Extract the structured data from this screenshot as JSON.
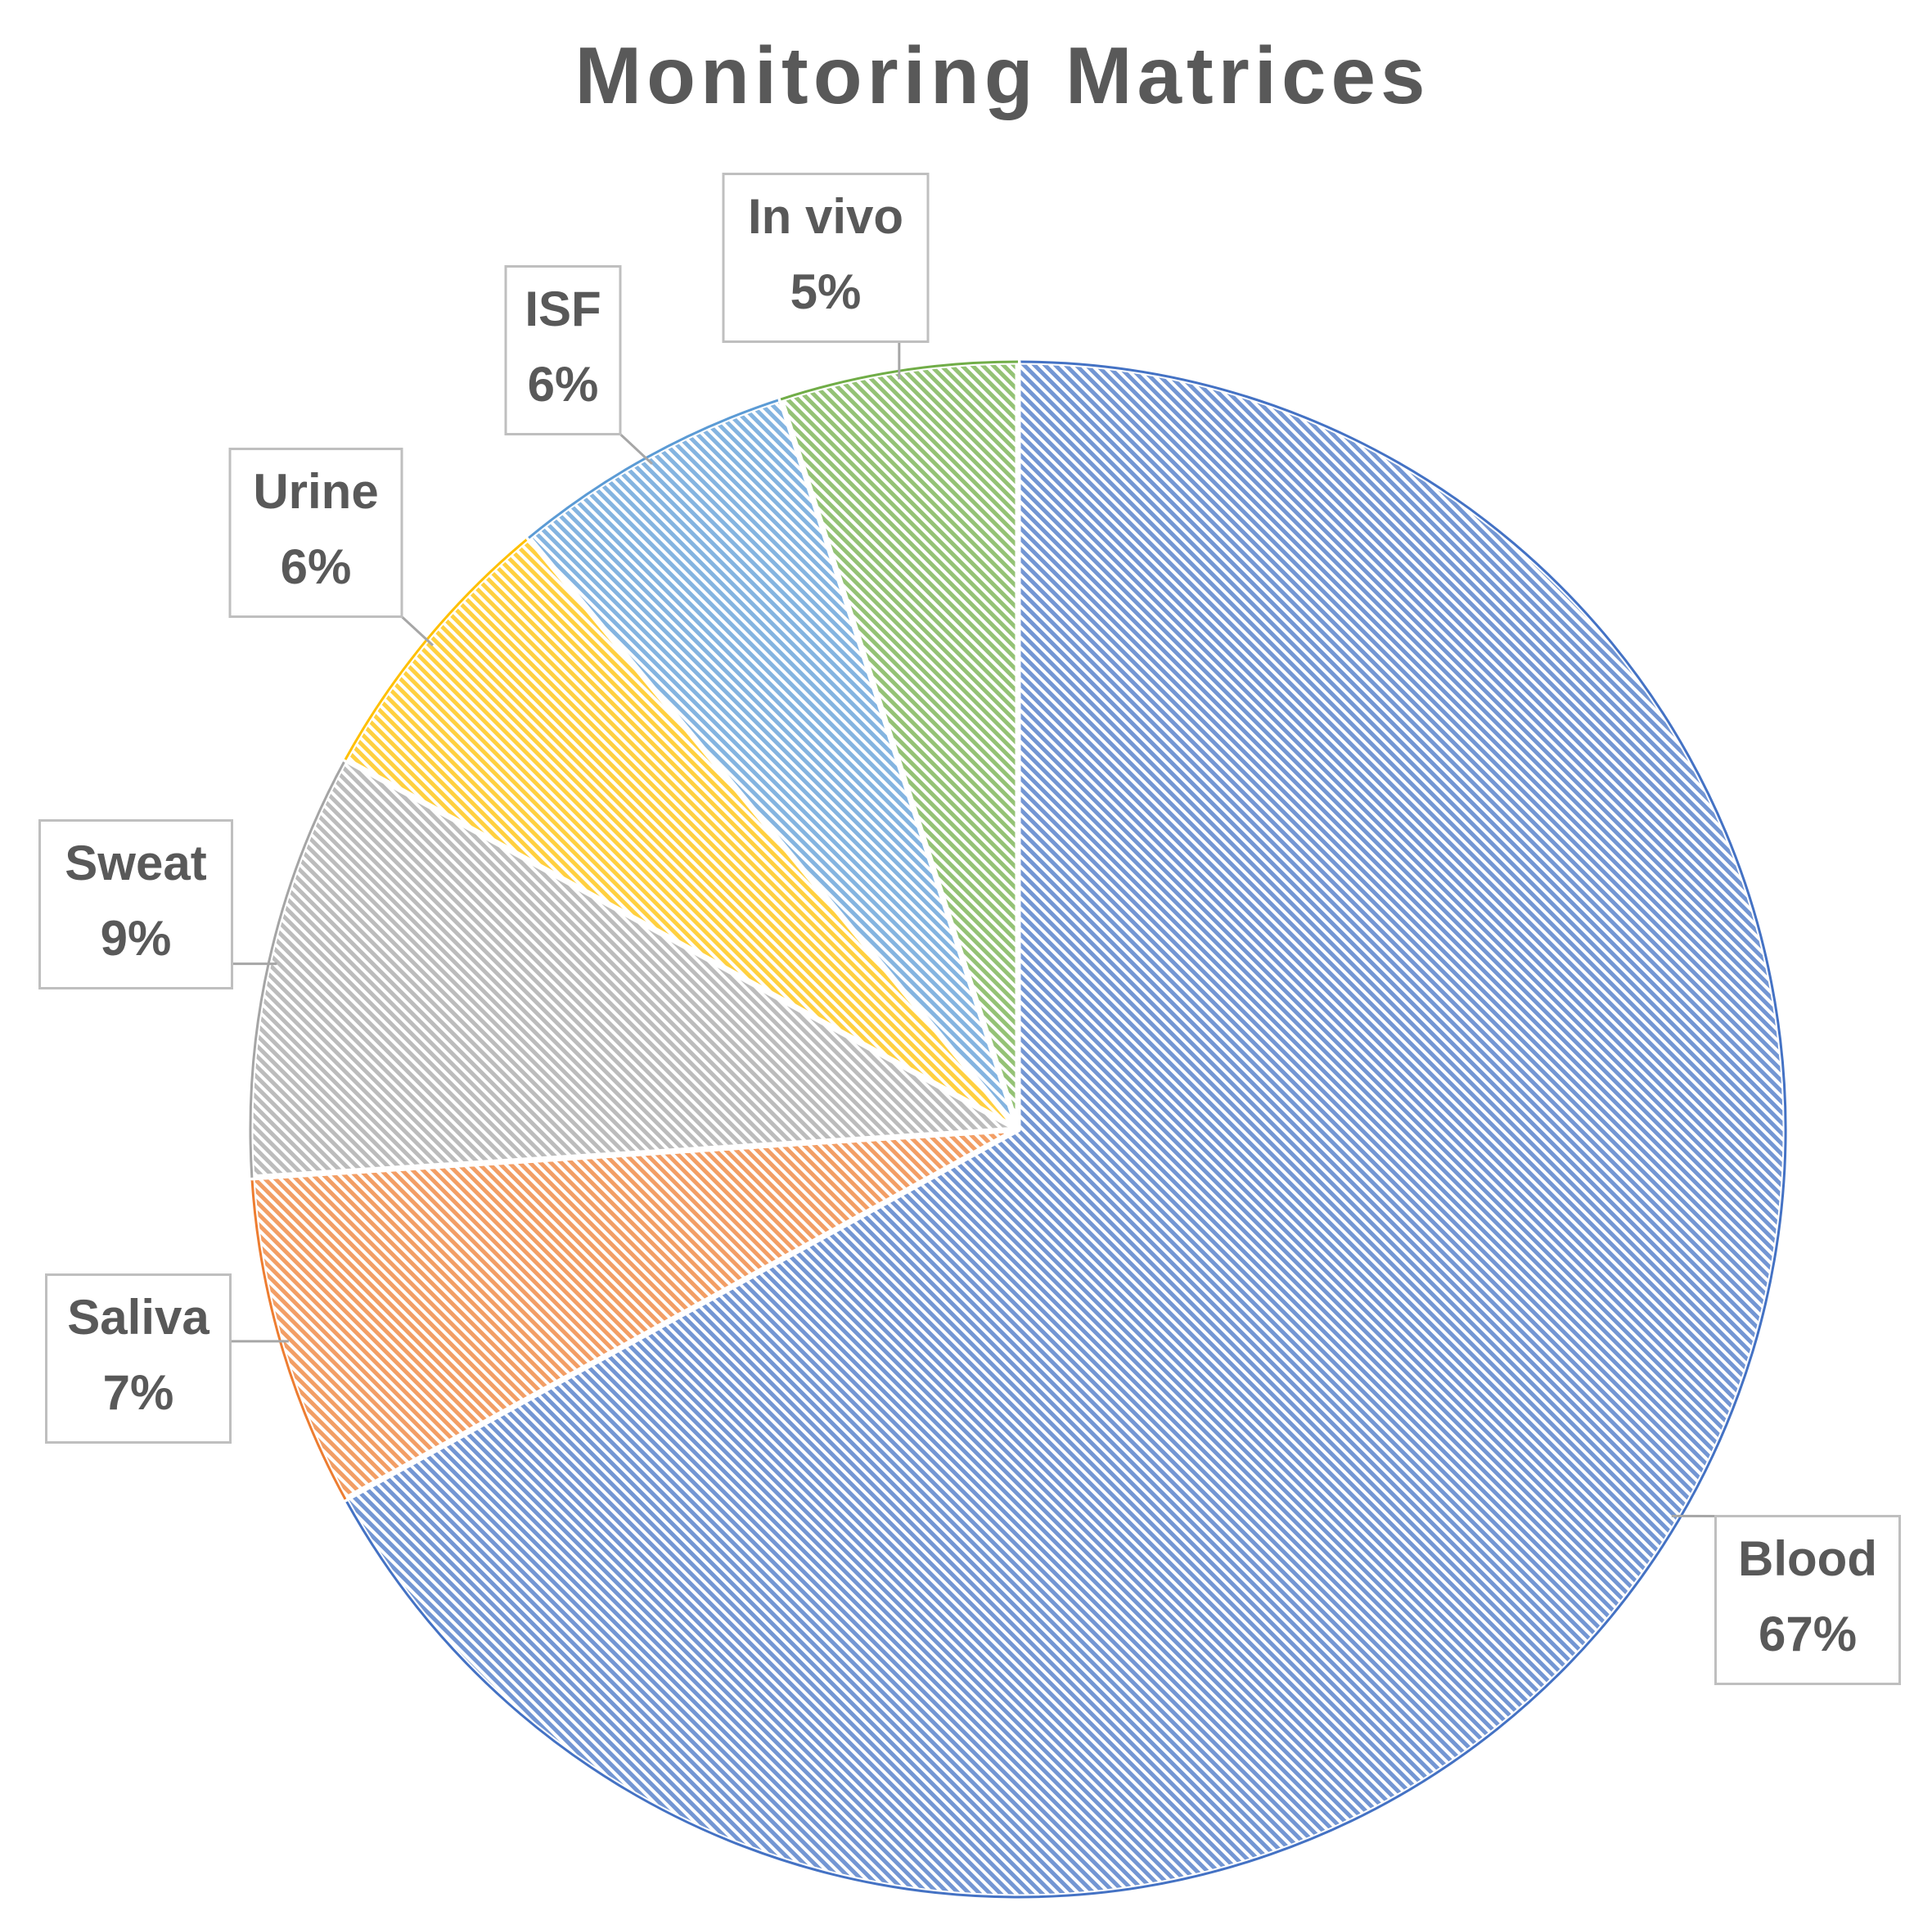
{
  "chart_data": {
    "type": "pie",
    "title": "Monitoring Matrices",
    "categories": [
      "Blood",
      "Saliva",
      "Sweat",
      "Urine",
      "ISF",
      "In vivo"
    ],
    "values": [
      67,
      7,
      9,
      6,
      6,
      5
    ],
    "value_labels": [
      "67%",
      "7%",
      "9%",
      "6%",
      "6%",
      "5%"
    ],
    "colors": [
      "#4472c4",
      "#ed7d31",
      "#a5a5a5",
      "#ffc000",
      "#5b9bd5",
      "#70ad47"
    ]
  }
}
